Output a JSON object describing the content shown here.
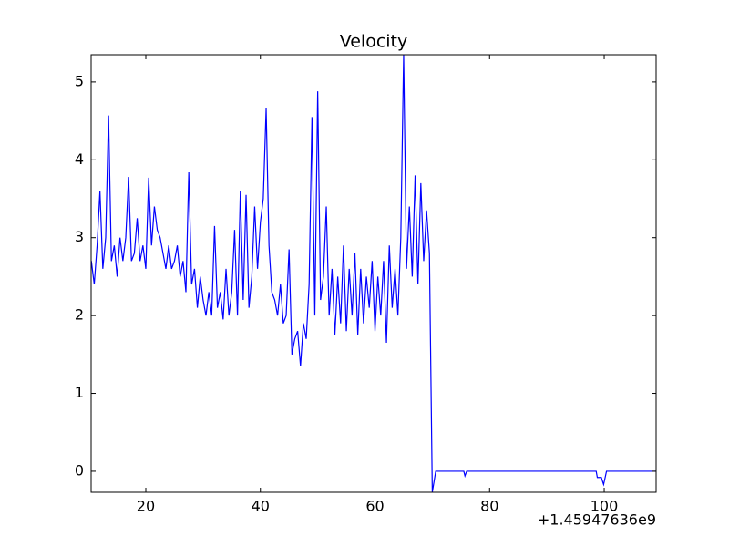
{
  "chart_data": {
    "type": "line",
    "title": "Velocity",
    "x_offset_label": "+1.45947636e9",
    "x": [
      10.5,
      11,
      11.5,
      12,
      12.5,
      13,
      13.5,
      14,
      14.5,
      15,
      15.5,
      16,
      16.5,
      17,
      17.5,
      18,
      18.5,
      19,
      19.5,
      20,
      20.5,
      21,
      21.5,
      22,
      22.5,
      23,
      23.5,
      24,
      24.5,
      25,
      25.5,
      26,
      26.5,
      27,
      27.5,
      28,
      28.5,
      29,
      29.5,
      30,
      30.5,
      31,
      31.5,
      32,
      32.5,
      33,
      33.5,
      34,
      34.5,
      35,
      35.5,
      36,
      36.5,
      37,
      37.5,
      38,
      38.5,
      39,
      39.5,
      40,
      40.5,
      41,
      41.5,
      42,
      42.5,
      43,
      43.5,
      44,
      44.5,
      45,
      45.5,
      46,
      46.5,
      47,
      47.5,
      48,
      48.5,
      49,
      49.5,
      50,
      50.5,
      51,
      51.5,
      52,
      52.5,
      53,
      53.5,
      54,
      54.5,
      55,
      55.5,
      56,
      56.5,
      57,
      57.5,
      58,
      58.5,
      59,
      59.5,
      60,
      60.5,
      61,
      61.5,
      62,
      62.5,
      63,
      63.5,
      64,
      64.5,
      65,
      65.5,
      66,
      66.5,
      67,
      67.5,
      68,
      68.5,
      69,
      69.5,
      70,
      70.6,
      75.5,
      75.7,
      76,
      98.6,
      98.8,
      99.5,
      99.9,
      100.4,
      109.06
    ],
    "series": [
      {
        "name": "velocity",
        "color": "#0000ff",
        "values": [
          2.7,
          2.4,
          2.9,
          3.6,
          2.6,
          3.0,
          4.57,
          2.7,
          2.9,
          2.5,
          3.0,
          2.7,
          3.0,
          3.78,
          2.7,
          2.8,
          3.25,
          2.7,
          2.9,
          2.6,
          3.77,
          2.9,
          3.4,
          3.1,
          3.0,
          2.8,
          2.6,
          2.9,
          2.6,
          2.7,
          2.9,
          2.5,
          2.7,
          2.3,
          3.84,
          2.4,
          2.6,
          2.1,
          2.5,
          2.2,
          2.0,
          2.3,
          2.0,
          3.15,
          2.1,
          2.3,
          1.95,
          2.6,
          2.0,
          2.3,
          3.1,
          2.0,
          3.6,
          2.2,
          3.55,
          2.1,
          2.5,
          3.4,
          2.6,
          3.2,
          3.5,
          4.66,
          2.9,
          2.3,
          2.2,
          2.0,
          2.4,
          1.9,
          2.0,
          2.85,
          1.5,
          1.7,
          1.8,
          1.35,
          1.9,
          1.7,
          2.4,
          4.55,
          2.0,
          4.88,
          2.2,
          2.5,
          3.4,
          2.0,
          2.6,
          1.75,
          2.5,
          1.9,
          2.9,
          1.8,
          2.6,
          2.0,
          2.8,
          1.75,
          2.6,
          1.9,
          2.5,
          2.1,
          2.7,
          1.8,
          2.5,
          2.0,
          2.7,
          1.65,
          2.9,
          2.1,
          2.6,
          2.0,
          3.0,
          5.35,
          2.6,
          3.4,
          2.5,
          3.8,
          2.4,
          3.7,
          2.7,
          3.35,
          2.8,
          -0.27,
          0,
          0,
          -0.06,
          0,
          0,
          -0.08,
          -0.08,
          -0.17,
          0,
          0
        ]
      }
    ],
    "xlim": [
      10.46,
      109.06
    ],
    "ylim": [
      -0.27,
      5.35
    ],
    "xticks": [
      20,
      40,
      60,
      80,
      100
    ],
    "yticks": [
      0,
      1,
      2,
      3,
      4,
      5
    ],
    "grid": false
  }
}
